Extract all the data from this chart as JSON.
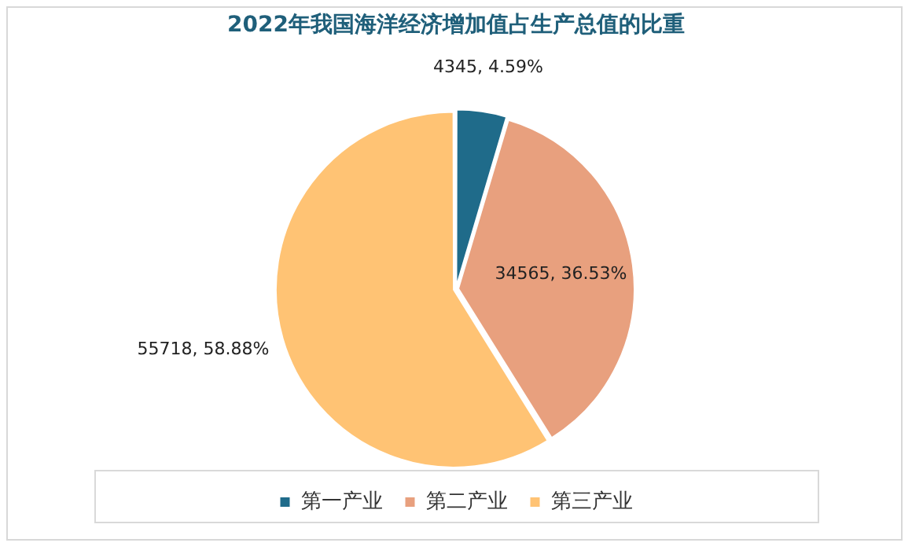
{
  "chart_data": {
    "type": "pie",
    "title": "2022年我国海洋经济增加值占生产总值的比重",
    "categories": [
      "第一产业",
      "第二产业",
      "第三产业"
    ],
    "values": [
      4345,
      34565,
      55718
    ],
    "colors": [
      "#1f6b8a",
      "#e8a07e",
      "#ffc374"
    ],
    "value_labels": [
      "4345, 4.59%",
      "34565, 36.53%",
      "55718, 58.88%"
    ],
    "legend": "bottom"
  }
}
